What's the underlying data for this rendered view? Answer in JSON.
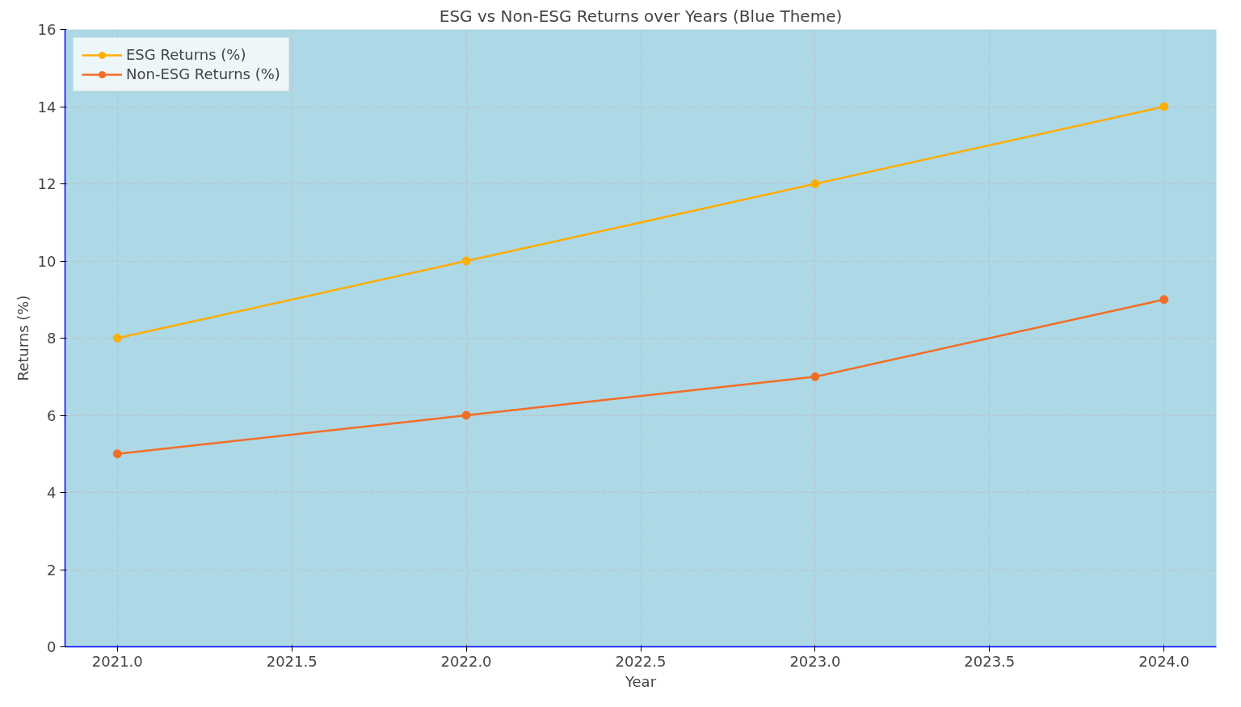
{
  "chart_data": {
    "type": "line",
    "title": "ESG vs Non-ESG Returns over Years (Blue Theme)",
    "xlabel": "Year",
    "ylabel": "Returns (%)",
    "x": [
      2021,
      2022,
      2023,
      2024
    ],
    "series": [
      {
        "name": "ESG Returns (%)",
        "color": "#ffad00",
        "values": [
          8,
          10,
          12,
          14
        ]
      },
      {
        "name": "Non-ESG Returns (%)",
        "color": "#f46d25",
        "values": [
          5,
          6,
          7,
          9
        ]
      }
    ],
    "xlim": [
      2020.85,
      2024.15
    ],
    "xticks": [
      {
        "value": 2021,
        "label": "2021.0"
      },
      {
        "value": 2021.5,
        "label": "2021.5"
      },
      {
        "value": 2022,
        "label": "2022.0"
      },
      {
        "value": 2022.5,
        "label": "2022.5"
      },
      {
        "value": 2023,
        "label": "2023.0"
      },
      {
        "value": 2023.5,
        "label": "2023.5"
      },
      {
        "value": 2024,
        "label": "2024.0"
      }
    ],
    "ylim": [
      0,
      16
    ],
    "yticks": [
      0,
      2,
      4,
      6,
      8,
      10,
      12,
      14,
      16
    ],
    "grid": true,
    "legend": "top left",
    "marker": "circle",
    "line_style": "solid"
  }
}
